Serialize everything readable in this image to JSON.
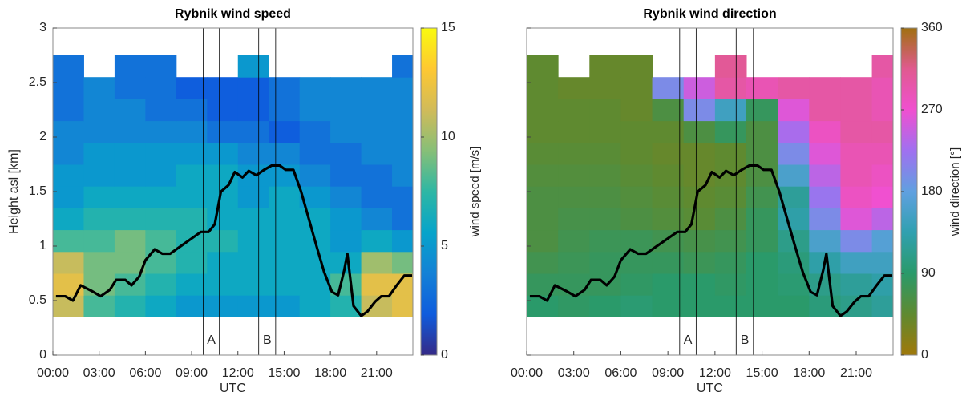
{
  "chart_data": [
    {
      "type": "heatmap",
      "title": "Rybnik wind speed",
      "ylabel": "Height asl [km]",
      "xlabel": "UTC",
      "xlim": [
        0,
        23.35
      ],
      "ylim": [
        0,
        3
      ],
      "xticks": [
        {
          "value": 0,
          "label": "00:00"
        },
        {
          "value": 3,
          "label": "03:00"
        },
        {
          "value": 6,
          "label": "06:00"
        },
        {
          "value": 9,
          "label": "09:00"
        },
        {
          "value": 12,
          "label": "12:00"
        },
        {
          "value": 15,
          "label": "15:00"
        },
        {
          "value": 18,
          "label": "18:00"
        },
        {
          "value": 21,
          "label": "21:00"
        }
      ],
      "yticks": [
        0,
        0.5,
        1,
        1.5,
        2,
        2.5,
        3
      ],
      "show_ytick_labels": true,
      "x": [
        1,
        3,
        5,
        7,
        9,
        11,
        13,
        15,
        17,
        19,
        21,
        23
      ],
      "y": [
        0.45,
        0.65,
        0.85,
        1.05,
        1.25,
        1.45,
        1.65,
        1.85,
        2.05,
        2.25,
        2.45,
        2.65
      ],
      "z": [
        [
          11,
          8,
          7,
          6,
          5,
          5,
          5,
          5,
          6,
          7,
          11,
          12
        ],
        [
          12,
          9,
          8,
          7,
          6,
          6,
          6,
          6,
          6,
          8,
          12,
          12
        ],
        [
          11,
          9,
          9,
          8,
          7,
          6,
          6,
          6,
          6,
          6,
          10,
          9
        ],
        [
          8,
          8,
          9,
          8,
          7,
          7,
          6,
          6,
          6,
          5,
          6,
          5
        ],
        [
          6,
          7,
          7,
          7,
          7,
          6,
          6,
          6,
          6,
          5,
          4,
          3
        ],
        [
          5,
          6,
          6,
          6,
          6,
          6,
          5,
          6,
          5,
          4,
          3,
          3
        ],
        [
          5,
          5,
          5,
          5,
          6,
          6,
          5,
          5,
          4,
          3,
          3,
          4
        ],
        [
          4,
          5,
          5,
          5,
          5,
          5,
          4,
          4,
          3,
          3,
          4,
          4
        ],
        [
          4,
          4,
          4,
          4,
          4,
          3,
          3,
          2,
          3,
          4,
          4,
          4
        ],
        [
          3,
          4,
          4,
          3,
          3,
          2,
          2,
          3,
          4,
          4,
          4,
          4
        ],
        [
          3,
          4,
          3,
          3,
          2,
          2,
          2,
          3,
          4,
          4,
          4,
          4
        ],
        [
          3,
          null,
          3,
          3,
          null,
          null,
          5,
          null,
          null,
          null,
          null,
          3
        ]
      ],
      "colorbar": {
        "label": "wind speed [m/s]",
        "lim": [
          0,
          15
        ],
        "ticks": [
          0,
          5,
          10,
          15
        ],
        "colormap": [
          "#352a87",
          "#0f5cdd",
          "#1481d6",
          "#06a4ca",
          "#2eb7a4",
          "#87bf77",
          "#d1bb59",
          "#fec832",
          "#f9fb0e"
        ]
      },
      "line": {
        "color": "#000000",
        "x": [
          0.2,
          0.8,
          1.3,
          1.8,
          2.5,
          3.1,
          3.7,
          4.1,
          4.7,
          5.1,
          5.6,
          6.0,
          6.6,
          7.1,
          7.6,
          8.1,
          8.6,
          9.1,
          9.6,
          10.1,
          10.5,
          10.9,
          11.4,
          11.8,
          12.3,
          12.7,
          13.2,
          13.7,
          14.2,
          14.7,
          15.1,
          15.6,
          16.1,
          16.6,
          17.1,
          17.6,
          18.1,
          18.5,
          18.9,
          19.1,
          19.5,
          20.0,
          20.4,
          20.9,
          21.3,
          21.8,
          22.3,
          22.8,
          23.3
        ],
        "y": [
          0.54,
          0.54,
          0.5,
          0.64,
          0.59,
          0.54,
          0.6,
          0.69,
          0.69,
          0.64,
          0.72,
          0.87,
          0.97,
          0.93,
          0.93,
          0.98,
          1.03,
          1.08,
          1.13,
          1.13,
          1.2,
          1.5,
          1.56,
          1.68,
          1.63,
          1.69,
          1.65,
          1.7,
          1.74,
          1.74,
          1.7,
          1.7,
          1.5,
          1.25,
          1.0,
          0.76,
          0.58,
          0.55,
          0.78,
          0.93,
          0.45,
          0.36,
          0.4,
          0.49,
          0.54,
          0.54,
          0.64,
          0.73,
          0.73
        ]
      },
      "markers": [
        {
          "label": "A",
          "x": [
            9.75,
            10.8
          ]
        },
        {
          "label": "B",
          "x": [
            13.35,
            14.45
          ]
        }
      ]
    },
    {
      "type": "heatmap",
      "title": "Rybnik wind direction",
      "xlabel": "UTC",
      "xlim": [
        0,
        23.35
      ],
      "ylim": [
        0,
        3
      ],
      "xticks": [
        {
          "value": 0,
          "label": "00:00"
        },
        {
          "value": 3,
          "label": "03:00"
        },
        {
          "value": 6,
          "label": "06:00"
        },
        {
          "value": 9,
          "label": "09:00"
        },
        {
          "value": 12,
          "label": "12:00"
        },
        {
          "value": 15,
          "label": "15:00"
        },
        {
          "value": 18,
          "label": "18:00"
        },
        {
          "value": 21,
          "label": "21:00"
        }
      ],
      "yticks": [
        0,
        0.5,
        1,
        1.5,
        2,
        2.5,
        3
      ],
      "show_ytick_labels": false,
      "x": [
        1,
        3,
        5,
        7,
        9,
        11,
        13,
        15,
        17,
        19,
        21,
        23
      ],
      "y": [
        0.45,
        0.65,
        0.85,
        1.05,
        1.25,
        1.45,
        1.65,
        1.85,
        2.05,
        2.25,
        2.45,
        2.65
      ],
      "z": [
        [
          90,
          85,
          90,
          95,
          90,
          90,
          90,
          90,
          90,
          100,
          110,
          120
        ],
        [
          80,
          80,
          80,
          85,
          90,
          90,
          85,
          90,
          95,
          110,
          120,
          130
        ],
        [
          70,
          75,
          80,
          80,
          80,
          75,
          80,
          90,
          100,
          130,
          150,
          150
        ],
        [
          60,
          70,
          75,
          75,
          70,
          65,
          70,
          80,
          110,
          160,
          200,
          170
        ],
        [
          60,
          65,
          65,
          60,
          55,
          50,
          60,
          80,
          130,
          200,
          260,
          240
        ],
        [
          60,
          60,
          60,
          55,
          50,
          45,
          50,
          70,
          120,
          220,
          280,
          270
        ],
        [
          55,
          55,
          55,
          50,
          45,
          40,
          45,
          60,
          160,
          240,
          290,
          280
        ],
        [
          50,
          50,
          50,
          45,
          40,
          40,
          45,
          60,
          200,
          260,
          290,
          290
        ],
        [
          45,
          45,
          45,
          45,
          45,
          60,
          80,
          60,
          230,
          280,
          300,
          300
        ],
        [
          45,
          45,
          45,
          40,
          60,
          200,
          150,
          80,
          260,
          300,
          300,
          290
        ],
        [
          45,
          40,
          40,
          40,
          200,
          250,
          300,
          290,
          300,
          300,
          300,
          290
        ],
        [
          45,
          null,
          40,
          40,
          null,
          null,
          310,
          null,
          null,
          null,
          null,
          300
        ]
      ],
      "colorbar": {
        "label": "wind direction [°]",
        "lim": [
          0,
          360
        ],
        "ticks": [
          0,
          90,
          180,
          270,
          360
        ],
        "colormap": [
          "#a0780a",
          "#5f8a30",
          "#2a9a6a",
          "#30a0b0",
          "#60a0e0",
          "#a070f0",
          "#f050d0",
          "#e05a90",
          "#a07010"
        ]
      },
      "line": {
        "color": "#000000",
        "x": [
          0.2,
          0.8,
          1.3,
          1.8,
          2.5,
          3.1,
          3.7,
          4.1,
          4.7,
          5.1,
          5.6,
          6.0,
          6.6,
          7.1,
          7.6,
          8.1,
          8.6,
          9.1,
          9.6,
          10.1,
          10.5,
          10.9,
          11.4,
          11.8,
          12.3,
          12.7,
          13.2,
          13.7,
          14.2,
          14.7,
          15.1,
          15.6,
          16.1,
          16.6,
          17.1,
          17.6,
          18.1,
          18.5,
          18.9,
          19.1,
          19.5,
          20.0,
          20.4,
          20.9,
          21.3,
          21.8,
          22.3,
          22.8,
          23.3
        ],
        "y": [
          0.54,
          0.54,
          0.5,
          0.64,
          0.59,
          0.54,
          0.6,
          0.69,
          0.69,
          0.64,
          0.72,
          0.87,
          0.97,
          0.93,
          0.93,
          0.98,
          1.03,
          1.08,
          1.13,
          1.13,
          1.2,
          1.5,
          1.56,
          1.68,
          1.63,
          1.69,
          1.65,
          1.7,
          1.74,
          1.74,
          1.7,
          1.7,
          1.5,
          1.25,
          1.0,
          0.76,
          0.58,
          0.55,
          0.78,
          0.93,
          0.45,
          0.36,
          0.4,
          0.49,
          0.54,
          0.54,
          0.64,
          0.73,
          0.73
        ]
      },
      "markers": [
        {
          "label": "A",
          "x": [
            9.75,
            10.8
          ]
        },
        {
          "label": "B",
          "x": [
            13.35,
            14.45
          ]
        }
      ]
    }
  ]
}
